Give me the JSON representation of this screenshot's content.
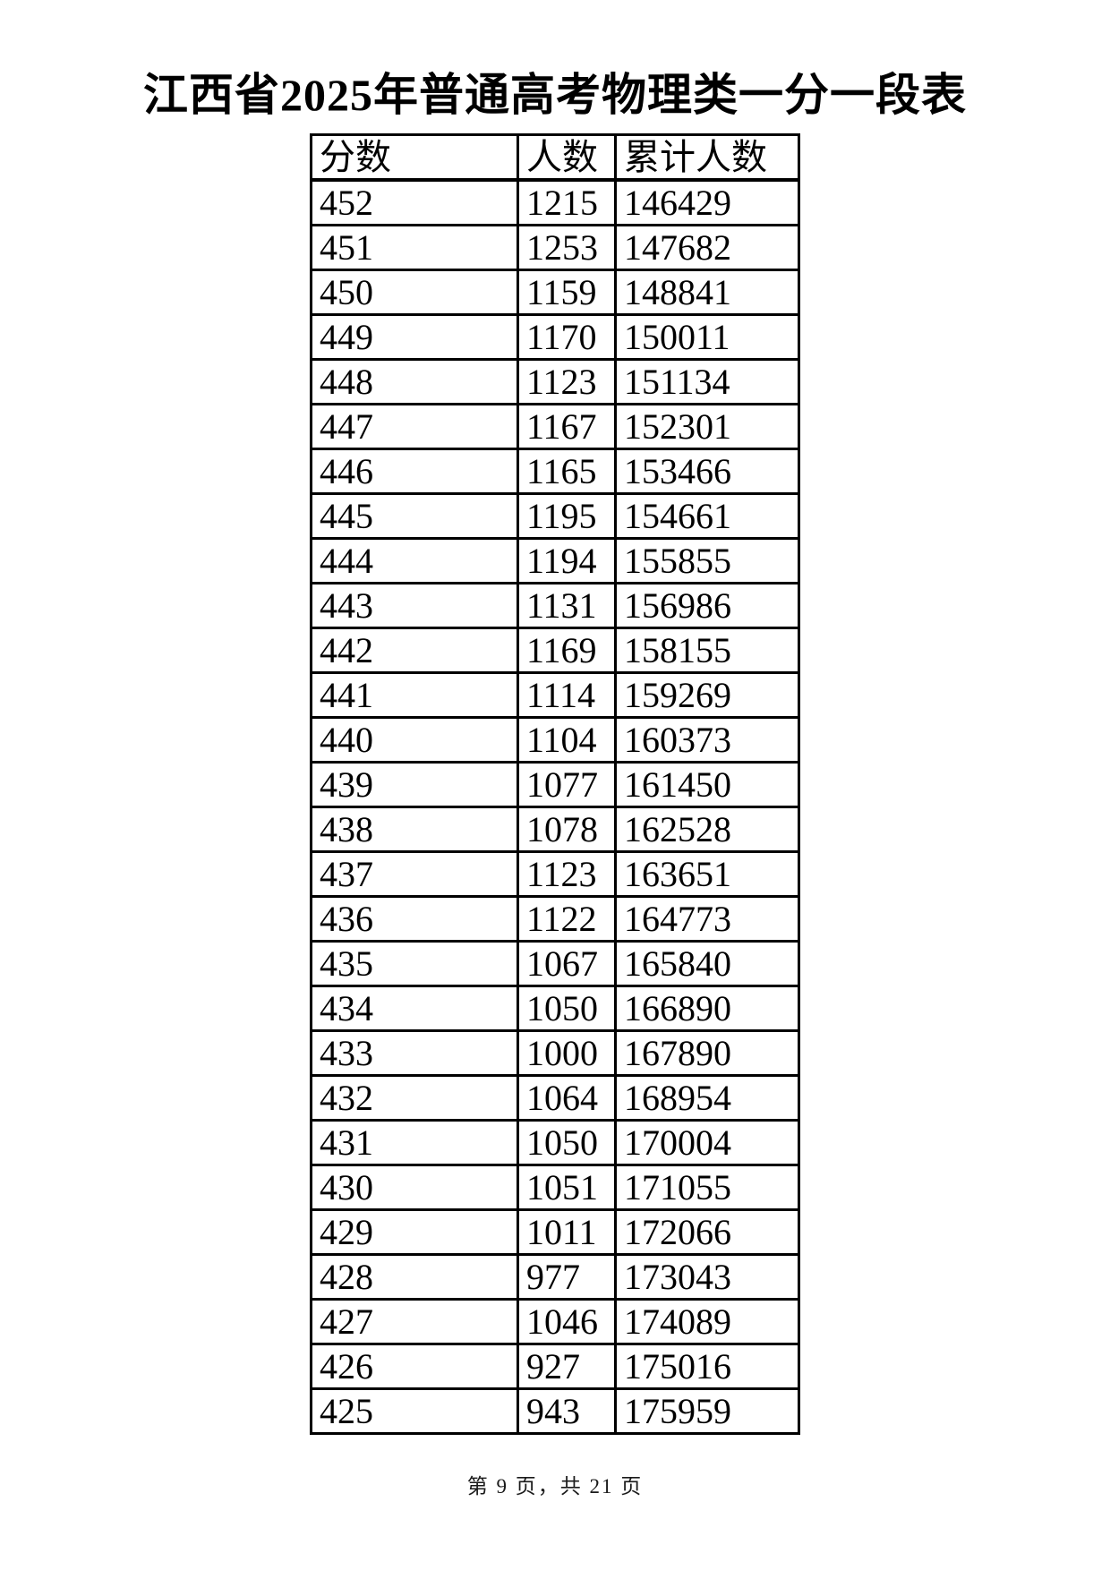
{
  "title": "江西省2025年普通高考物理类一分一段表",
  "table": {
    "columns": [
      {
        "key": "score",
        "label": "分数"
      },
      {
        "key": "count",
        "label": "人数"
      },
      {
        "key": "cumulative",
        "label": "累计人数"
      }
    ],
    "rows": [
      {
        "score": "452",
        "count": "1215",
        "cumulative": "146429"
      },
      {
        "score": "451",
        "count": "1253",
        "cumulative": "147682"
      },
      {
        "score": "450",
        "count": "1159",
        "cumulative": "148841"
      },
      {
        "score": "449",
        "count": "1170",
        "cumulative": "150011"
      },
      {
        "score": "448",
        "count": "1123",
        "cumulative": "151134"
      },
      {
        "score": "447",
        "count": "1167",
        "cumulative": "152301"
      },
      {
        "score": "446",
        "count": "1165",
        "cumulative": "153466"
      },
      {
        "score": "445",
        "count": "1195",
        "cumulative": "154661"
      },
      {
        "score": "444",
        "count": "1194",
        "cumulative": "155855"
      },
      {
        "score": "443",
        "count": "1131",
        "cumulative": "156986"
      },
      {
        "score": "442",
        "count": "1169",
        "cumulative": "158155"
      },
      {
        "score": "441",
        "count": "1114",
        "cumulative": "159269"
      },
      {
        "score": "440",
        "count": "1104",
        "cumulative": "160373"
      },
      {
        "score": "439",
        "count": "1077",
        "cumulative": "161450"
      },
      {
        "score": "438",
        "count": "1078",
        "cumulative": "162528"
      },
      {
        "score": "437",
        "count": "1123",
        "cumulative": "163651"
      },
      {
        "score": "436",
        "count": "1122",
        "cumulative": "164773"
      },
      {
        "score": "435",
        "count": "1067",
        "cumulative": "165840"
      },
      {
        "score": "434",
        "count": "1050",
        "cumulative": "166890"
      },
      {
        "score": "433",
        "count": "1000",
        "cumulative": "167890"
      },
      {
        "score": "432",
        "count": "1064",
        "cumulative": "168954"
      },
      {
        "score": "431",
        "count": "1050",
        "cumulative": "170004"
      },
      {
        "score": "430",
        "count": "1051",
        "cumulative": "171055"
      },
      {
        "score": "429",
        "count": "1011",
        "cumulative": "172066"
      },
      {
        "score": "428",
        "count": "977",
        "cumulative": "173043"
      },
      {
        "score": "427",
        "count": "1046",
        "cumulative": "174089"
      },
      {
        "score": "426",
        "count": "927",
        "cumulative": "175016"
      },
      {
        "score": "425",
        "count": "943",
        "cumulative": "175959"
      }
    ]
  },
  "footer": {
    "page_indicator": "第 9 页，共 21 页"
  }
}
